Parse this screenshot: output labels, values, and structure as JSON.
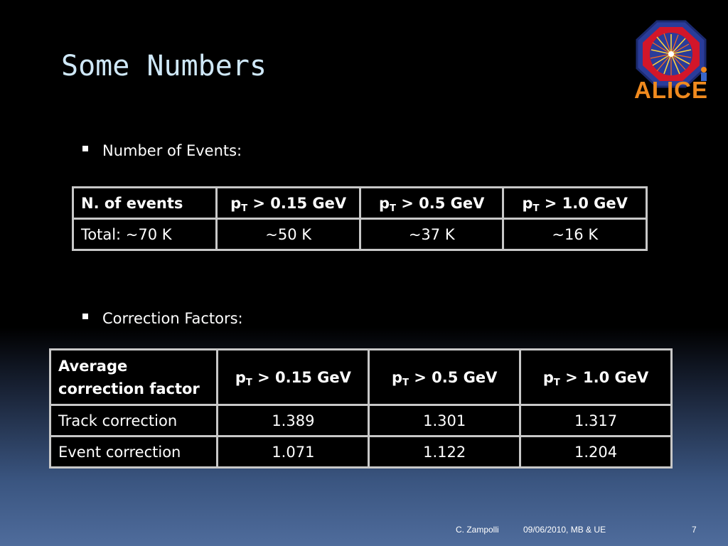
{
  "slide": {
    "title": "Some Numbers",
    "logo_text": "ALICE"
  },
  "section1": {
    "bullet": "Number of Events:",
    "table": {
      "header": [
        "N. of events",
        "p",
        "T",
        " > 0.15 GeV",
        "p",
        "T",
        " > 0.5 GeV",
        "p",
        "T",
        " > 1.0 GeV"
      ],
      "h0": "N. of events",
      "h1_p": "p",
      "h1_sub": "T",
      "h1_rest": " > 0.15 GeV",
      "h2_p": "p",
      "h2_sub": "T",
      "h2_rest": " > 0.5 GeV",
      "h3_p": "p",
      "h3_sub": "T",
      "h3_rest": " > 1.0 GeV",
      "row": [
        "Total: ~70 K",
        "~50 K",
        "~37 K",
        "~16 K"
      ]
    }
  },
  "section2": {
    "bullet": "Correction Factors:",
    "table": {
      "h0_line1": "Average",
      "h0_line2": "correction factor",
      "h1_p": "p",
      "h1_sub": "T",
      "h1_rest": " > 0.15 GeV",
      "h2_p": "p",
      "h2_sub": "T",
      "h2_rest": " > 0.5 GeV",
      "h3_p": "p",
      "h3_sub": "T",
      "h3_rest": " > 1.0 GeV",
      "rows": [
        [
          "Track correction",
          "1.389",
          "1.301",
          "1.317"
        ],
        [
          "Event correction",
          "1.071",
          "1.122",
          "1.204"
        ]
      ]
    }
  },
  "footer": {
    "author": "C. Zampolli",
    "date_event": "09/06/2010, MB & UE",
    "page_number": "7"
  },
  "colors": {
    "title": "#cfe8f8",
    "header_first": "#f5a800",
    "header_pt": "#e0217a",
    "logo_orange": "#f08a1e",
    "border": "#c8c8c8"
  }
}
